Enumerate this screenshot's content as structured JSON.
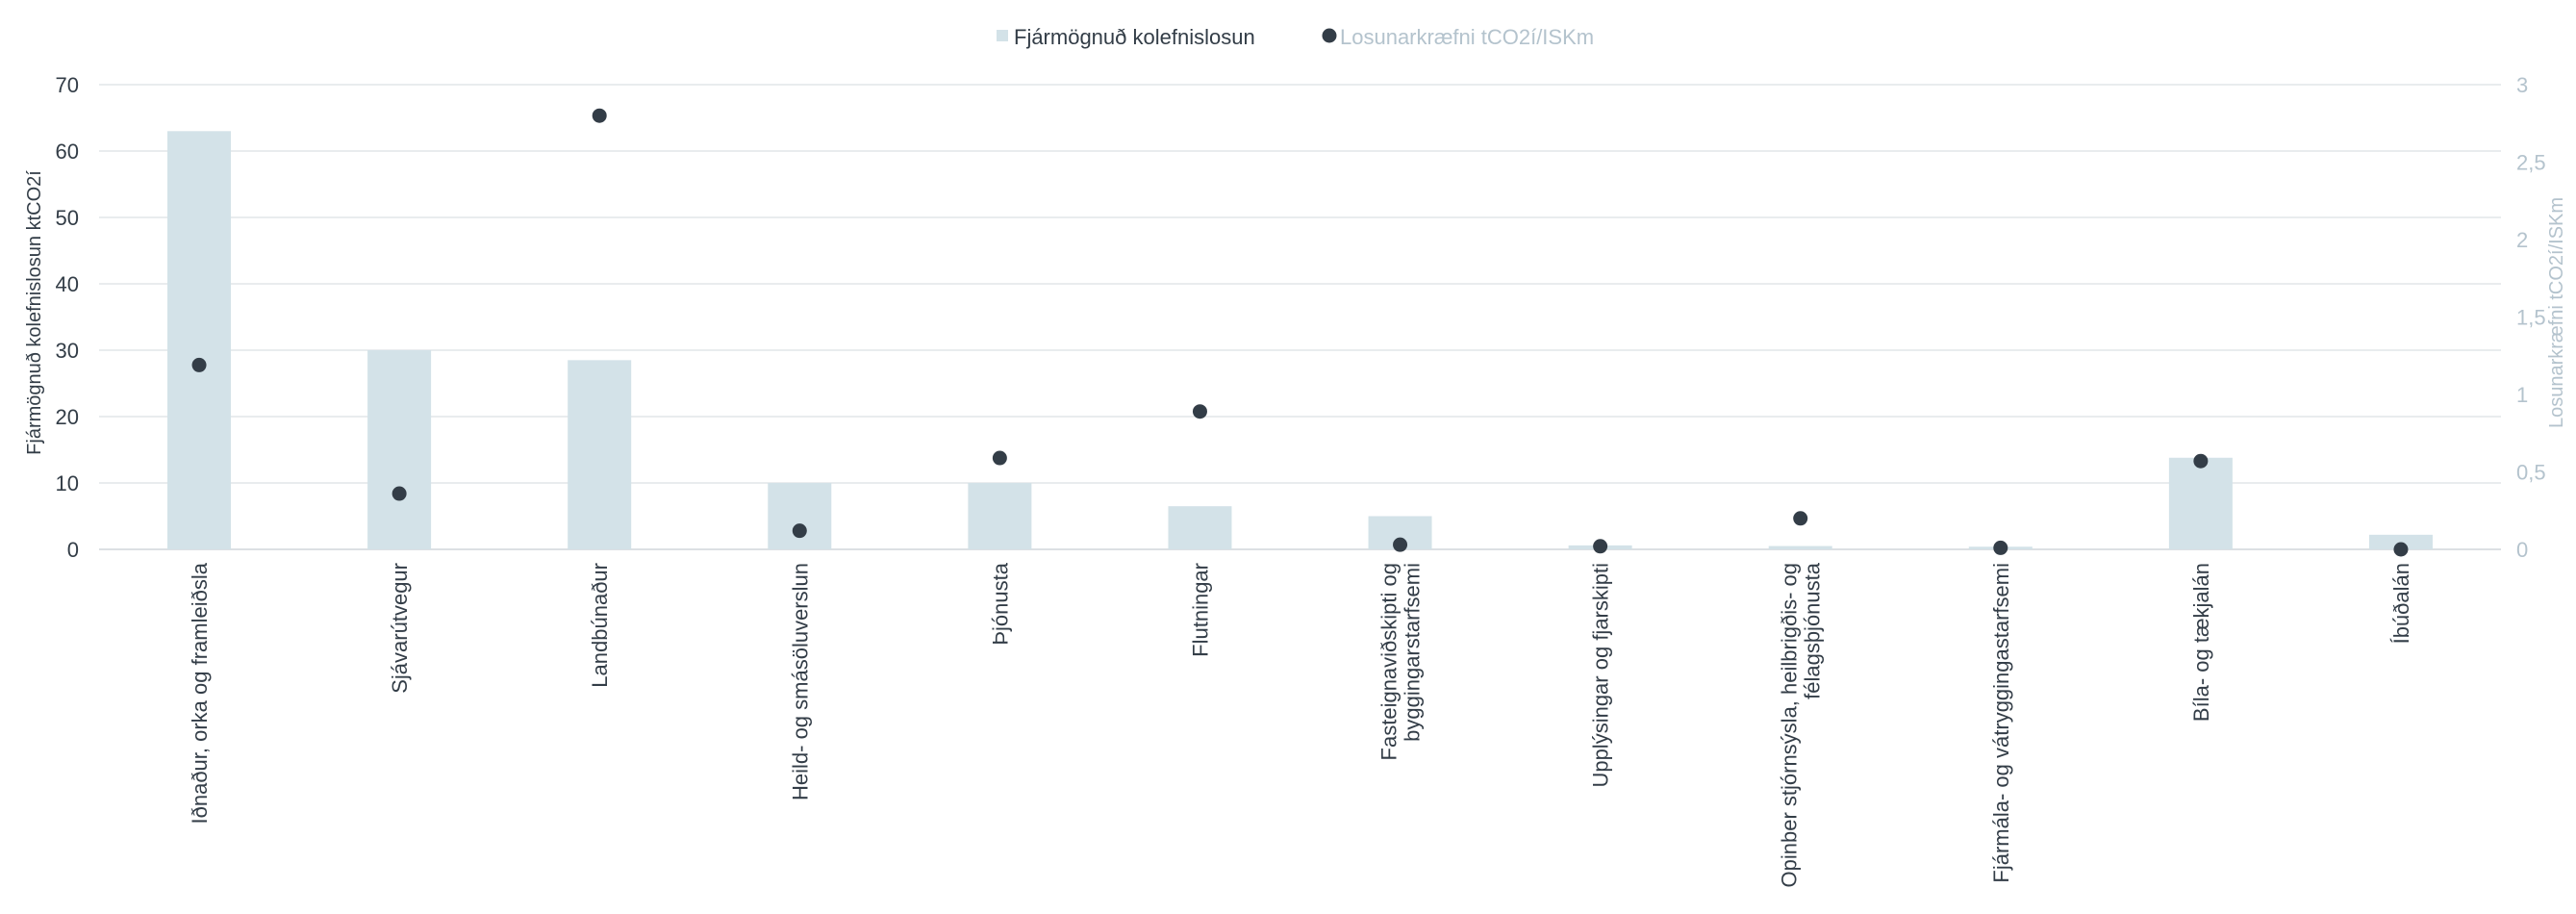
{
  "chart_data": {
    "type": "bar",
    "categories": [
      [
        "Iðnaður, orka og framleiðsla"
      ],
      [
        "Sjávarútvegur"
      ],
      [
        "Landbúnaður"
      ],
      [
        "Heild- og smásöluverslun"
      ],
      [
        "Þjónusta"
      ],
      [
        "Flutningar"
      ],
      [
        "Fasteignaviðskipti og",
        "byggingarstarfsemi"
      ],
      [
        "Upplýsingar og fjarskipti"
      ],
      [
        "Opinber stjórnsýsla, heilbrigðis- og",
        "félagsþjónusta"
      ],
      [
        "Fjármála- og vátryggingastarfsemi"
      ],
      [
        "Bíla- og tækjalán"
      ],
      [
        "Íbúðalán"
      ]
    ],
    "series": [
      {
        "name": "Fjármögnuð kolefnislosun",
        "type": "bar",
        "axis": "left",
        "color": "#d3e2e8",
        "values": [
          63,
          30,
          28.5,
          10,
          10,
          6.5,
          5,
          0.6,
          0.5,
          0.4,
          13.8,
          2.2
        ]
      },
      {
        "name": "Losunarkræfni tCO2í/ISKm",
        "type": "scatter",
        "axis": "right",
        "color": "#333d47",
        "values": [
          1.19,
          0.36,
          2.8,
          0.12,
          0.59,
          0.89,
          0.03,
          0.02,
          0.2,
          0.01,
          0.57,
          0.0
        ]
      }
    ],
    "ylabel": "Fjármögnuð kolefnislosun  ktCO2í",
    "y2label": "Losunarkræfni tCO2í/ISKm",
    "ylim": [
      0,
      70
    ],
    "yticks": [
      "0",
      "10",
      "20",
      "30",
      "40",
      "50",
      "60",
      "70"
    ],
    "y2lim": [
      0,
      3
    ],
    "y2ticks": [
      "0",
      "0,5",
      "1",
      "1,5",
      "2",
      "2,5",
      "3"
    ],
    "grid": true,
    "legend_position": "top-center"
  },
  "legend": {
    "bar_label": "Fjármögnuð kolefnislosun",
    "dot_label": "Losunarkræfni tCO2í/ISKm"
  }
}
